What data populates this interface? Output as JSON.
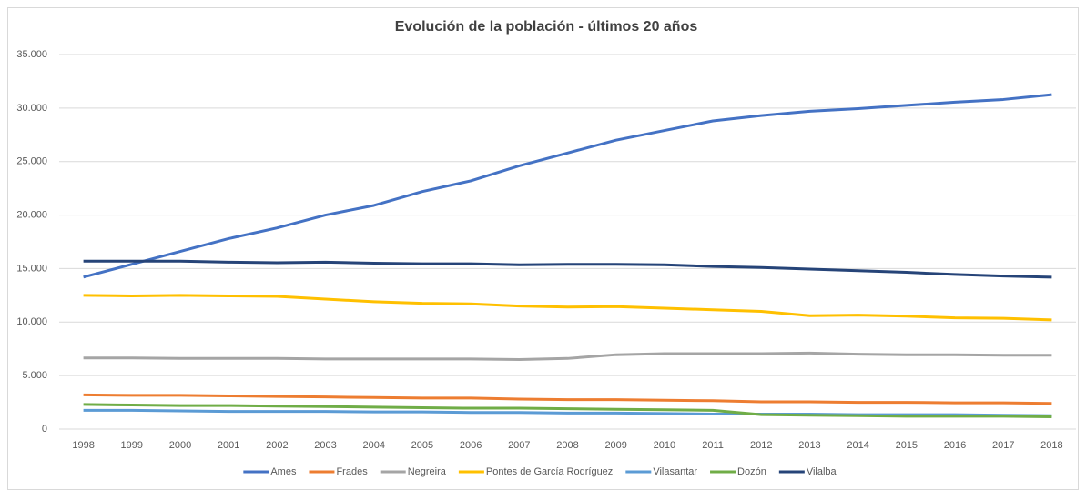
{
  "chart_data": {
    "type": "line",
    "title": "Evolución de la población - últimos 20 años",
    "categories": [
      "1998",
      "1999",
      "2000",
      "2001",
      "2002",
      "2003",
      "2004",
      "2005",
      "2006",
      "2007",
      "2008",
      "2009",
      "2010",
      "2011",
      "2012",
      "2013",
      "2014",
      "2015",
      "2016",
      "2017",
      "2018"
    ],
    "series": [
      {
        "name": "Ames",
        "color": "#4472c4",
        "values": [
          14200,
          15400,
          16600,
          17800,
          18800,
          20000,
          20900,
          22200,
          23200,
          24600,
          25800,
          27000,
          27900,
          28800,
          29300,
          29700,
          29950,
          30250,
          30550,
          30800,
          31250
        ]
      },
      {
        "name": "Frades",
        "color": "#ed7d31",
        "values": [
          3200,
          3150,
          3150,
          3100,
          3050,
          3000,
          2950,
          2900,
          2900,
          2800,
          2750,
          2750,
          2700,
          2650,
          2550,
          2550,
          2500,
          2500,
          2450,
          2450,
          2400
        ]
      },
      {
        "name": "Negreira",
        "color": "#a5a5a5",
        "values": [
          6650,
          6650,
          6600,
          6600,
          6600,
          6550,
          6550,
          6550,
          6550,
          6500,
          6600,
          6950,
          7050,
          7050,
          7050,
          7100,
          7000,
          6950,
          6950,
          6900,
          6900
        ]
      },
      {
        "name": "Pontes de García Rodríguez",
        "color": "#ffc000",
        "values": [
          12500,
          12450,
          12500,
          12450,
          12400,
          12150,
          11900,
          11750,
          11700,
          11500,
          11400,
          11450,
          11300,
          11150,
          11000,
          10600,
          10650,
          10550,
          10400,
          10350,
          10200
        ]
      },
      {
        "name": "Vilasantar",
        "color": "#5b9bd5",
        "values": [
          1750,
          1750,
          1700,
          1650,
          1650,
          1650,
          1600,
          1600,
          1550,
          1550,
          1500,
          1500,
          1450,
          1400,
          1400,
          1400,
          1350,
          1350,
          1350,
          1300,
          1250
        ]
      },
      {
        "name": "Dozón",
        "color": "#70ad47",
        "values": [
          2300,
          2250,
          2200,
          2200,
          2150,
          2100,
          2050,
          2000,
          1950,
          1950,
          1900,
          1850,
          1800,
          1750,
          1350,
          1300,
          1250,
          1200,
          1200,
          1200,
          1150
        ]
      },
      {
        "name": "Vilalba",
        "color": "#264478",
        "values": [
          15700,
          15700,
          15700,
          15600,
          15550,
          15600,
          15500,
          15450,
          15450,
          15350,
          15400,
          15400,
          15350,
          15200,
          15100,
          14950,
          14800,
          14650,
          14450,
          14300,
          14200
        ]
      }
    ],
    "ylim": [
      0,
      35000
    ],
    "yticks": [
      0,
      {
        "value": 5000,
        "label": "5.000"
      },
      {
        "value": 10000,
        "label": "10.000"
      },
      {
        "value": 15000,
        "label": "15.000"
      },
      {
        "value": 20000,
        "label": "20.000"
      },
      {
        "value": 25000,
        "label": "25.000"
      },
      {
        "value": 30000,
        "label": "30.000"
      },
      {
        "value": 35000,
        "label": "35.000"
      }
    ],
    "grid": true,
    "legend": "bottom"
  }
}
